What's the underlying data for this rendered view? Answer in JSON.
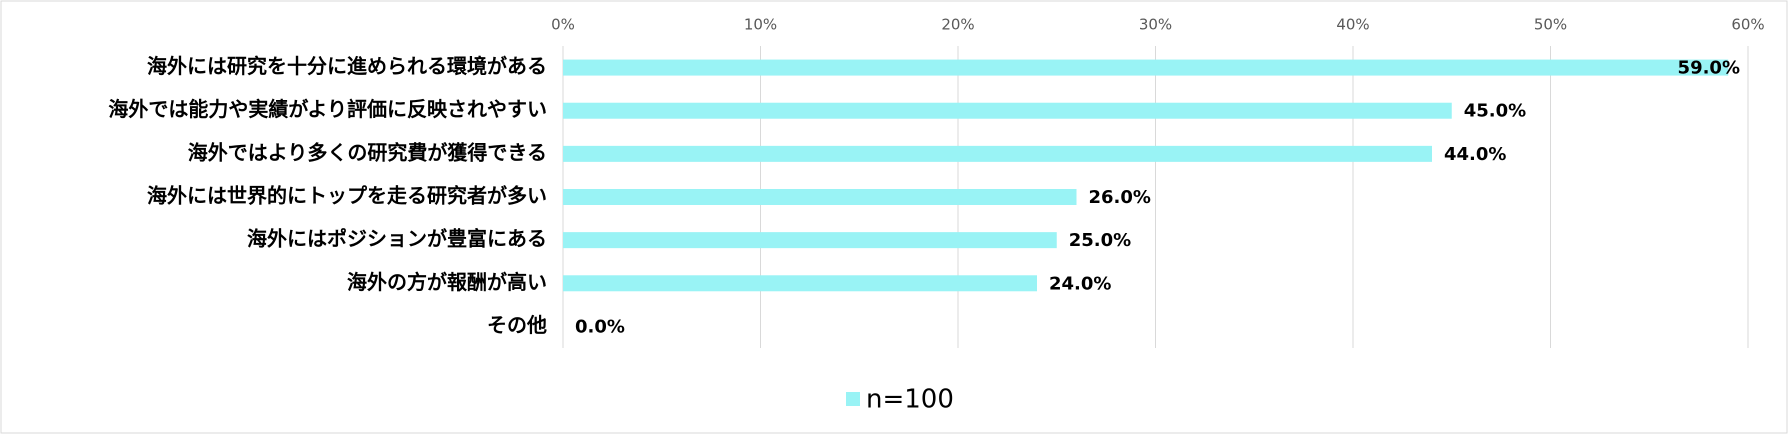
{
  "chart_data": {
    "type": "barh",
    "categories": [
      "海外には研究を十分に進められる環境がある",
      "海外では能力や実績がより評価に反映されやすい",
      "海外ではより多くの研究費が獲得できる",
      "海外には世界的にトップを走る研究者が多い",
      "海外にはポジションが豊富にある",
      "海外の方が報酬が高い",
      "その他"
    ],
    "series": [
      {
        "name": "n=100",
        "color": "#99f3f5",
        "values": [
          59,
          45,
          44,
          26,
          25,
          24,
          0
        ],
        "value_labels": [
          "59.0%",
          "45.0%",
          "44.0%",
          "26.0%",
          "25.0%",
          "24.0%",
          "0.0%"
        ]
      }
    ],
    "xlim": [
      0,
      60
    ],
    "xticks": [
      {
        "value": 0,
        "label": "0%"
      },
      {
        "value": 10,
        "label": "10%"
      },
      {
        "value": 20,
        "label": "20%"
      },
      {
        "value": 30,
        "label": "30%"
      },
      {
        "value": 40,
        "label": "40%"
      },
      {
        "value": 50,
        "label": "50%"
      },
      {
        "value": 60,
        "label": "60%"
      }
    ],
    "grid": true,
    "legend": "bottom"
  }
}
